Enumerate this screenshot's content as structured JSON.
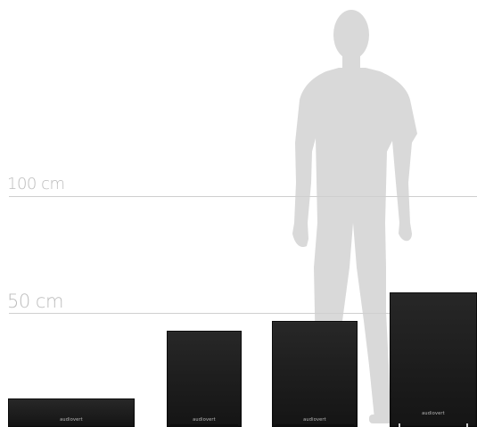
{
  "ruler": {
    "label_100": "100 cm",
    "label_50": "50 cm"
  },
  "speakers": [
    {
      "logo": "audiovert"
    },
    {
      "logo": "audiovert"
    },
    {
      "logo": "audiovert"
    },
    {
      "logo": "audiovert"
    }
  ],
  "colors": {
    "silhouette": "#d9d9d9",
    "ruler_line": "#cfcfcf",
    "ruler_text": "#bdbdbd",
    "speaker_body": "#1c1c1c"
  },
  "icons": {
    "person": "human-silhouette-icon"
  }
}
